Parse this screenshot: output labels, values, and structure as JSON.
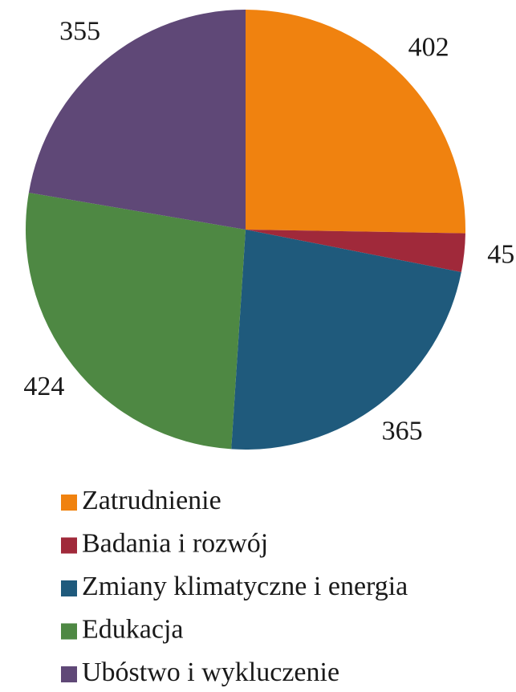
{
  "chart_data": {
    "type": "pie",
    "categories": [
      "Zatrudnienie",
      "Badania i rozwój",
      "Zmiany klimatyczne i energia",
      "Edukacja",
      "Ubóstwo i wykluczenie"
    ],
    "values": [
      402,
      45,
      365,
      424,
      355
    ],
    "colors": [
      "#f0820f",
      "#a0293a",
      "#1f5a7c",
      "#4e8843",
      "#5f4877"
    ]
  }
}
